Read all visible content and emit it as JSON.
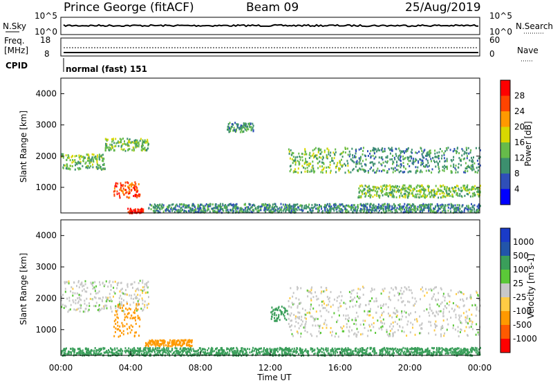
{
  "header": {
    "station": "Prince George (fitACF)",
    "beam": "Beam 09",
    "date": "25/Aug/2019"
  },
  "meta_panel": {
    "nsky_label": "N.Sky",
    "nsky_ticks": [
      "10^5",
      "10^0"
    ],
    "nsearch_ticks": [
      "10^5",
      "10^0"
    ],
    "nsearch_label": "N.Search",
    "freq_label": "Freq.",
    "freq_unit": "[MHz]",
    "freq_ticks": [
      "18",
      "8"
    ],
    "nave_ticks": [
      "60",
      "0"
    ],
    "nave_label": "Nave",
    "cpid_label": "CPID",
    "cpid_value": "normal (fast) 151"
  },
  "chart_data": [
    {
      "type": "heatmap",
      "name": "power",
      "ylabel": "Slant Range [km]",
      "ylim": [
        180,
        4500
      ],
      "yticks": [
        "4000",
        "3000",
        "2000",
        "1000"
      ],
      "xlim_hours": [
        0,
        24
      ],
      "colorbar": {
        "label": "Power [dB]",
        "ticks": [
          "28",
          "24",
          "20",
          "16",
          "12",
          "8",
          "4"
        ],
        "colors": [
          "#0000ff",
          "#2f4fb8",
          "#3c8f6e",
          "#66bb4a",
          "#d8d800",
          "#ff9900",
          "#ff4400",
          "#ff0000"
        ]
      },
      "regions": [
        {
          "from_h": 0.0,
          "to_h": 2.5,
          "r0": 1600,
          "r1": 2100,
          "level": 12
        },
        {
          "from_h": 2.5,
          "to_h": 5.0,
          "r0": 2200,
          "r1": 2600,
          "level": 12
        },
        {
          "from_h": 3.0,
          "to_h": 4.5,
          "r0": 700,
          "r1": 1200,
          "level": 24
        },
        {
          "from_h": 3.8,
          "to_h": 4.7,
          "r0": 200,
          "r1": 350,
          "level": 28
        },
        {
          "from_h": 5.0,
          "to_h": 8.5,
          "r0": 220,
          "r1": 500,
          "level": 8
        },
        {
          "from_h": 9.5,
          "to_h": 11.0,
          "r0": 2800,
          "r1": 3100,
          "level": 8
        },
        {
          "from_h": 13.0,
          "to_h": 16.5,
          "r0": 1500,
          "r1": 2300,
          "level": 12
        },
        {
          "from_h": 16.5,
          "to_h": 24.0,
          "r0": 1500,
          "r1": 2300,
          "level": 8
        },
        {
          "from_h": 17.0,
          "to_h": 24.0,
          "r0": 700,
          "r1": 1100,
          "level": 12
        },
        {
          "from_h": 8.5,
          "to_h": 24.0,
          "r0": 220,
          "r1": 500,
          "level": 8
        }
      ]
    },
    {
      "type": "heatmap",
      "name": "velocity",
      "ylabel": "Slant Range [km]",
      "xlabel": "Time UT",
      "ylim": [
        180,
        4500
      ],
      "yticks": [
        "4000",
        "3000",
        "2000",
        "1000"
      ],
      "xlim_hours": [
        0,
        24
      ],
      "xticks": [
        "00:00",
        "04:00",
        "08:00",
        "12:00",
        "16:00",
        "20:00",
        "00:00"
      ],
      "colorbar": {
        "label": "Velocity [m s-1]",
        "ticks": [
          "1000",
          "500",
          "100",
          "25",
          "-25",
          "-100",
          "-500",
          "-1000"
        ],
        "colors": [
          "#ff0000",
          "#ff5a00",
          "#ff9900",
          "#ffcc44",
          "#c8c8c8",
          "#5bc838",
          "#3a9e5a",
          "#2255aa",
          "#1a3bc8"
        ]
      },
      "regions": [
        {
          "from_h": 0.0,
          "to_h": 5.0,
          "r0": 1600,
          "r1": 2600,
          "velocity": 0
        },
        {
          "from_h": 3.0,
          "to_h": 4.5,
          "r0": 800,
          "r1": 1900,
          "velocity": -200
        },
        {
          "from_h": 4.8,
          "to_h": 7.5,
          "r0": 500,
          "r1": 700,
          "velocity": -200
        },
        {
          "from_h": 12.0,
          "to_h": 13.0,
          "r0": 1300,
          "r1": 1800,
          "velocity": 100
        },
        {
          "from_h": 13.0,
          "to_h": 24.0,
          "r0": 800,
          "r1": 2400,
          "velocity": 0
        },
        {
          "from_h": 0.0,
          "to_h": 24.0,
          "r0": 200,
          "r1": 450,
          "velocity": 100
        }
      ]
    }
  ]
}
